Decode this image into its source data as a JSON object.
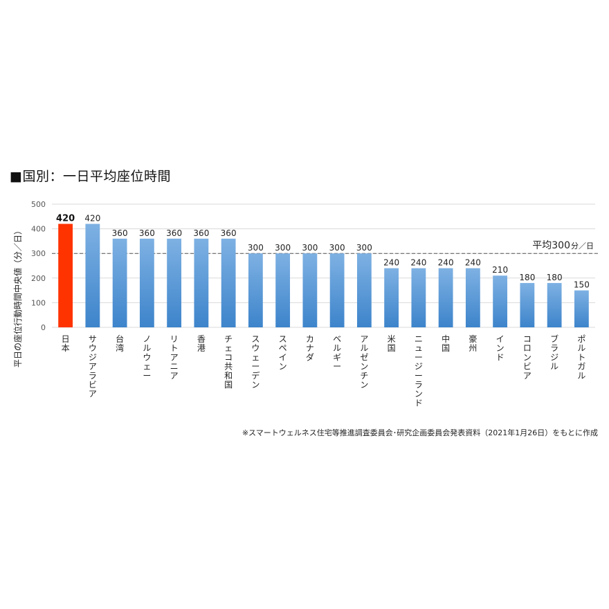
{
  "chart_data": {
    "type": "bar",
    "title": "■国別：一日平均座位時間",
    "ylabel": "平日の座位行動時間中央値（分／日）",
    "ylim": [
      0,
      500
    ],
    "yticks": [
      0,
      100,
      200,
      300,
      400,
      500
    ],
    "grid": true,
    "categories": [
      "日本",
      "サウジアラビア",
      "台湾",
      "ノルウェー",
      "リトアニア",
      "香港",
      "チェコ共和国",
      "スウェーデン",
      "スペイン",
      "カナダ",
      "ベルギー",
      "アルゼンチン",
      "米国",
      "ニュージーランド",
      "中国",
      "豪州",
      "インド",
      "コロンビア",
      "ブラジル",
      "ポルトガル"
    ],
    "values": [
      420,
      420,
      360,
      360,
      360,
      360,
      360,
      300,
      300,
      300,
      300,
      300,
      240,
      240,
      240,
      240,
      210,
      180,
      180,
      150
    ],
    "highlight_index": 0,
    "colors": {
      "highlight": "#ff3300",
      "bar_top": "#7eb1e3",
      "bar_bottom": "#3d84cb",
      "grid": "#d9d9d9",
      "avg_line": "#555555"
    },
    "average": {
      "value": 300,
      "label": "平均300",
      "unit": "分／日"
    }
  },
  "source": "※スマートウェルネス住宅等推進調査委員会･研究企画委員会発表資料（2021年1月26日）をもとに作成"
}
